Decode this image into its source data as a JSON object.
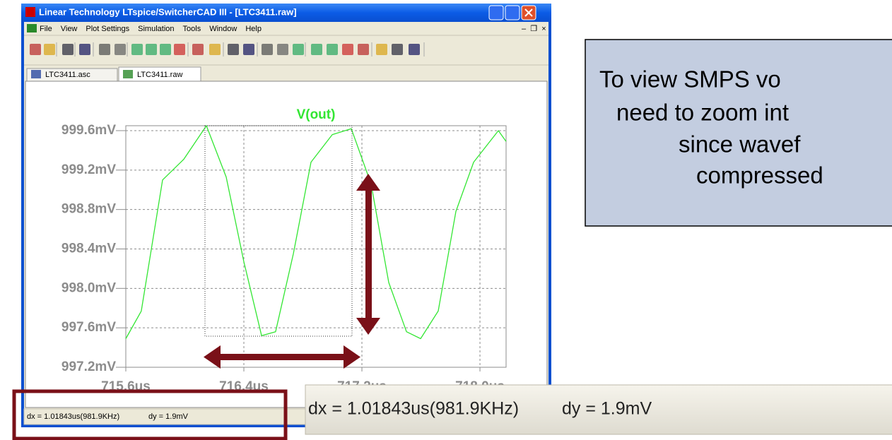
{
  "window": {
    "title": "Linear Technology LTspice/SwitcherCAD III - [LTC3411.raw]",
    "menu": [
      "File",
      "View",
      "Plot Settings",
      "Simulation",
      "Tools",
      "Window",
      "Help"
    ],
    "tabs": [
      "LTC3411.asc",
      "LTC3411.raw"
    ],
    "status": [
      "dx = 1.01843us(981.9KHz)",
      "dy = 1.9mV"
    ]
  },
  "chart_data": {
    "type": "line",
    "title": "V(out)",
    "x": [
      715.6,
      715.705,
      715.849,
      715.993,
      716.146,
      716.28,
      716.4,
      716.52,
      716.615,
      716.735,
      716.855,
      716.999,
      717.128,
      717.262,
      717.382,
      717.502,
      717.598,
      717.717,
      717.837,
      717.957,
      718.125,
      718.177
    ],
    "series": [
      {
        "color": "#33e633",
        "values": [
          997.49,
          997.77,
          999.1,
          999.31,
          999.65,
          999.13,
          998.27,
          997.52,
          997.56,
          998.35,
          999.28,
          999.56,
          999.62,
          999.06,
          998.06,
          997.56,
          997.49,
          997.77,
          998.78,
          999.28,
          999.6,
          999.49
        ]
      }
    ],
    "xlim": [
      715.6,
      718.177
    ],
    "ylim": [
      997.2,
      999.65
    ],
    "xticks": [
      {
        "value": 715.6,
        "label": "715.6us"
      },
      {
        "value": 716.4,
        "label": "716.4us"
      },
      {
        "value": 717.2,
        "label": "717.2us"
      },
      {
        "value": 718.0,
        "label": "718.0us"
      }
    ],
    "yticks": [
      {
        "value": 997.2,
        "label": "997.2mV"
      },
      {
        "value": 997.6,
        "label": "997.6mV"
      },
      {
        "value": 998.0,
        "label": "998.0mV"
      },
      {
        "value": 998.4,
        "label": "998.4mV"
      },
      {
        "value": 998.8,
        "label": "998.8mV"
      },
      {
        "value": 999.2,
        "label": "999.2mV"
      },
      {
        "value": 999.6,
        "label": "999.6mV"
      }
    ],
    "grid": true
  },
  "callout": {
    "lines": [
      "To view SMPS vo",
      "need to zoom int",
      "since wavef",
      "compressed"
    ]
  },
  "zoomed_status": [
    "dx = 1.01843us(981.9KHz)",
    "dy = 1.9mV"
  ]
}
